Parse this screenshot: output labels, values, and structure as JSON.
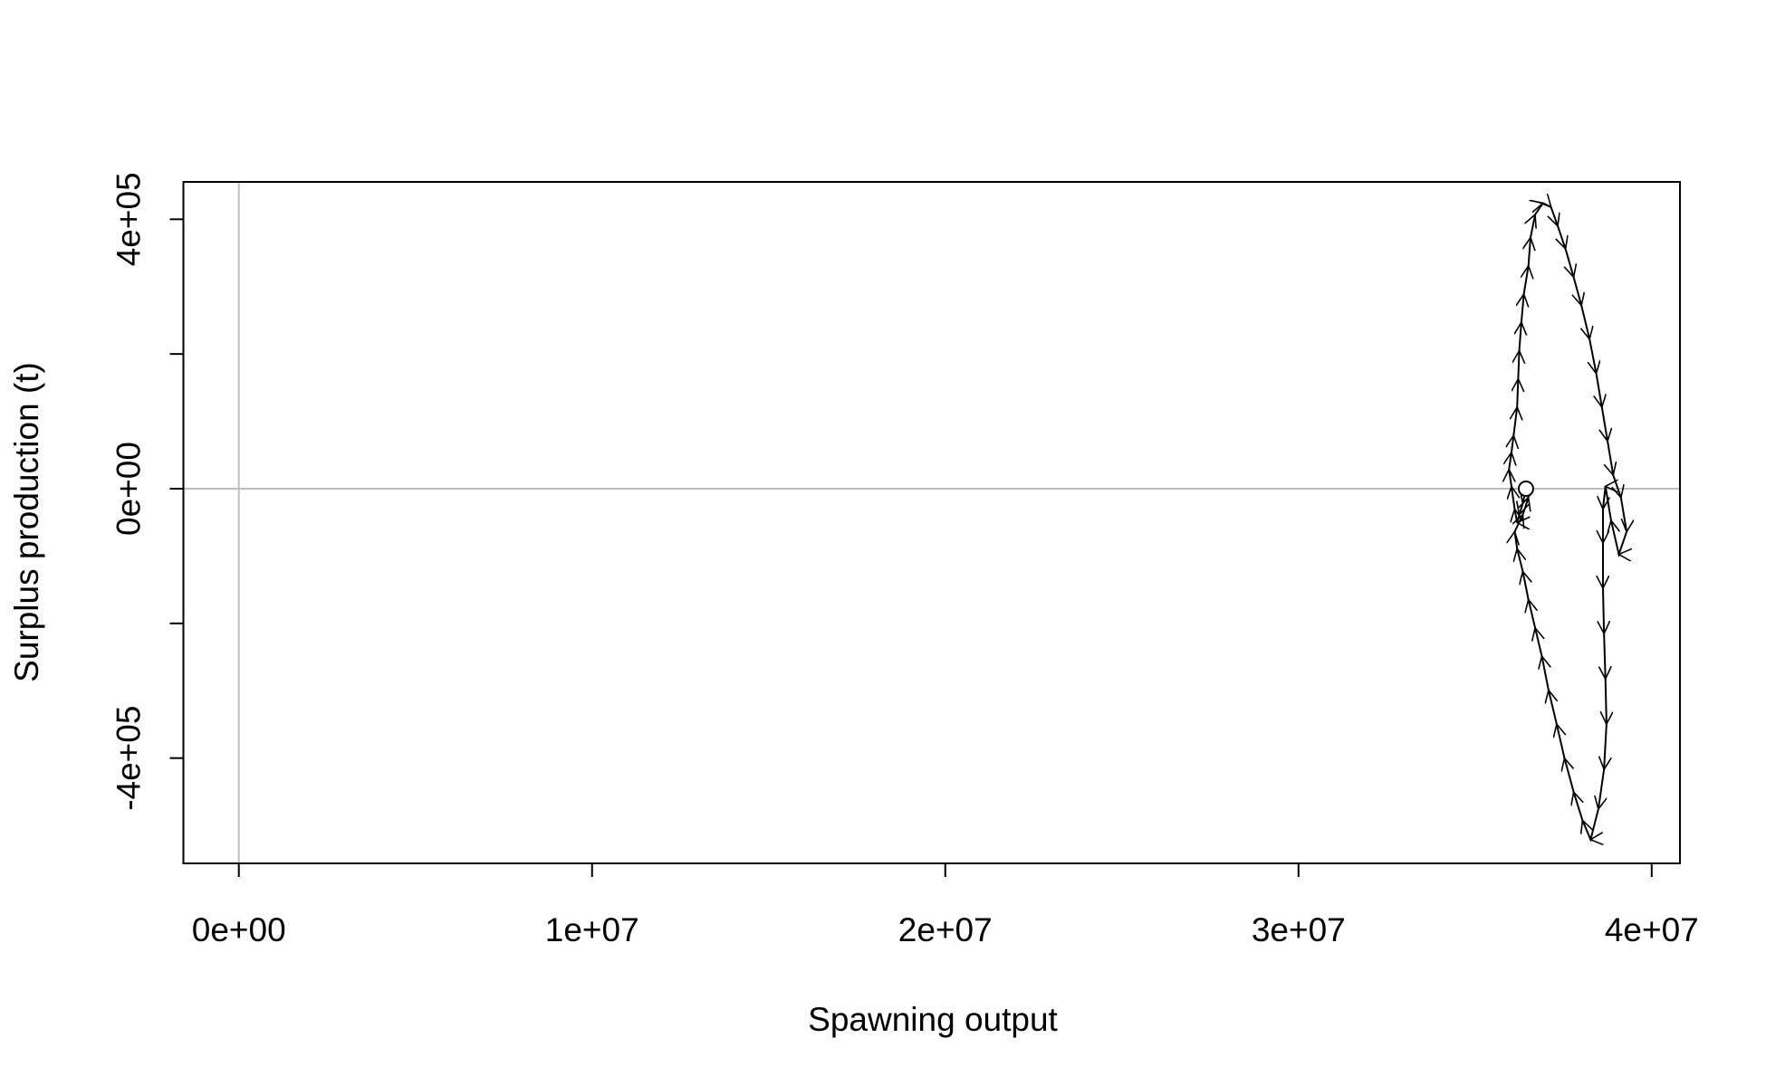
{
  "chart_data": {
    "type": "line",
    "xlabel": "Spawning output",
    "ylabel": "Surplus production (t)",
    "color": "#000000",
    "arrows": true,
    "start_marker": true,
    "reference_lines": {
      "x": 0,
      "y": 0,
      "color": "#bebebe"
    },
    "xlim": [
      -1570000,
      40800000
    ],
    "ylim": [
      -556300,
      455500
    ],
    "xticks": [
      {
        "value": 0,
        "label": "0e+00"
      },
      {
        "value": 10000000,
        "label": "1e+07"
      },
      {
        "value": 20000000,
        "label": "2e+07"
      },
      {
        "value": 30000000,
        "label": "3e+07"
      },
      {
        "value": 40000000,
        "label": "4e+07"
      }
    ],
    "yticks": [
      {
        "value": -400000,
        "label": "-4e+05"
      },
      {
        "value": -200000,
        "label": null
      },
      {
        "value": 0,
        "label": "0e+00"
      },
      {
        "value": 200000,
        "label": null
      },
      {
        "value": 400000,
        "label": "4e+05"
      }
    ],
    "x": [
      36440000,
      36350000,
      36250000,
      36190000,
      36120000,
      36030000,
      35960000,
      36030000,
      36090000,
      36190000,
      36220000,
      36250000,
      36310000,
      36380000,
      36510000,
      36570000,
      36700000,
      36920000,
      37150000,
      37340000,
      37560000,
      37790000,
      38010000,
      38240000,
      38430000,
      38590000,
      38750000,
      38910000,
      39130000,
      39290000,
      39070000,
      38850000,
      38690000,
      38620000,
      38620000,
      38620000,
      38650000,
      38690000,
      38720000,
      38650000,
      38490000,
      38270000,
      38040000,
      37790000,
      37530000,
      37310000,
      37080000,
      36890000,
      36700000,
      36510000,
      36350000,
      36190000,
      36120000,
      36350000,
      36510000
    ],
    "values": [
      0,
      -21800,
      -38700,
      -50400,
      -30300,
      3400,
      28600,
      53800,
      79000,
      121000,
      163000,
      205000,
      247000,
      289000,
      331000,
      373000,
      407000,
      424000,
      418000,
      390000,
      356000,
      314000,
      272000,
      222000,
      171000,
      121000,
      70600,
      20200,
      -13400,
      -63900,
      -97500,
      -47100,
      3400,
      -30300,
      -80700,
      -147900,
      -215100,
      -282400,
      -349600,
      -416800,
      -475600,
      -521000,
      -492400,
      -450400,
      -400000,
      -349600,
      -299200,
      -248700,
      -206700,
      -164700,
      -122700,
      -89100,
      -63900,
      -38700,
      -13400
    ]
  }
}
